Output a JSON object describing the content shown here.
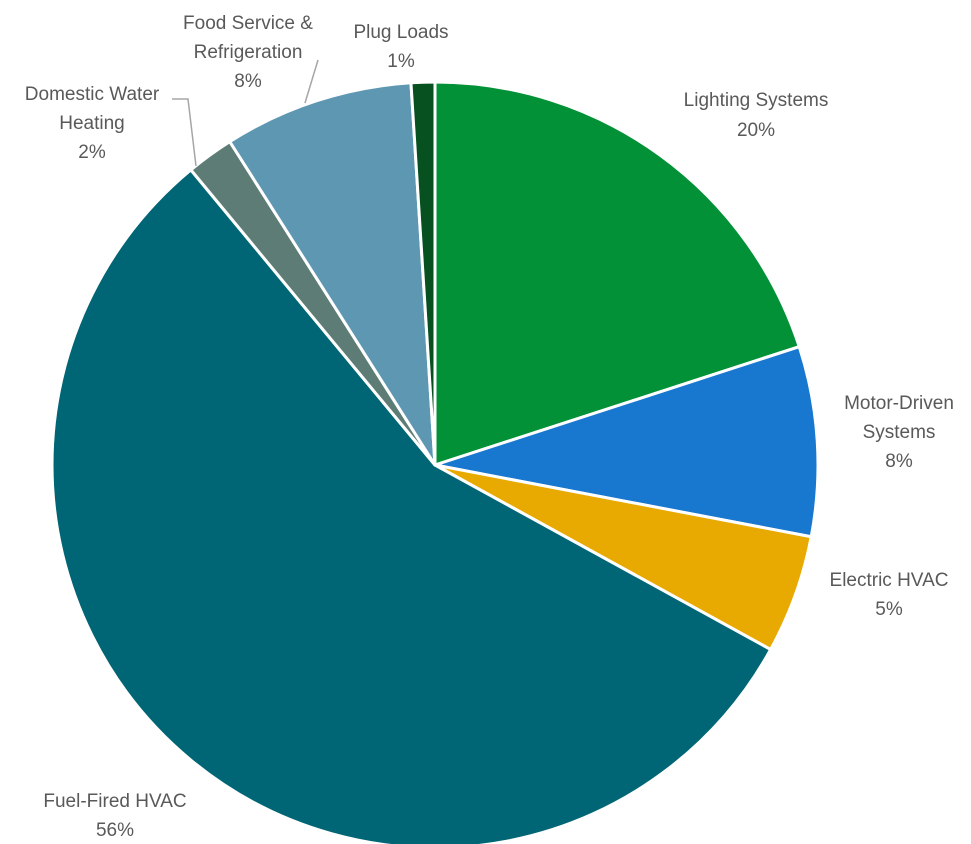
{
  "chart_data": {
    "type": "pie",
    "title": "",
    "start": "top",
    "direction": "clockwise",
    "slices": [
      {
        "name": "Lighting Systems",
        "value": 20,
        "label": "20%",
        "color": "#039137"
      },
      {
        "name": "Motor-Driven Systems",
        "value": 8,
        "label": "8%",
        "color": "#1878d0"
      },
      {
        "name": "Electric HVAC",
        "value": 5,
        "label": "5%",
        "color": "#e8a900"
      },
      {
        "name": "Fuel-Fired HVAC",
        "value": 56,
        "label": "56%",
        "color": "#006574"
      },
      {
        "name": "Domestic Water Heating",
        "value": 2,
        "label": "2%",
        "color": "#5e7c76"
      },
      {
        "name": "Food Service & Refrigeration",
        "value": 8,
        "label": "8%",
        "color": "#5e97b2"
      },
      {
        "name": "Plug Loads",
        "value": 1,
        "label": "1%",
        "color": "#075020"
      }
    ]
  },
  "labels": {
    "lighting": {
      "line1": "Lighting Systems",
      "pct": "20%"
    },
    "motor": {
      "line1": "Motor-Driven",
      "line2": "Systems",
      "pct": "8%"
    },
    "electric": {
      "line1": "Electric HVAC",
      "pct": "5%"
    },
    "fuel": {
      "line1": "Fuel-Fired HVAC",
      "pct": "56%"
    },
    "water": {
      "line1": "Domestic Water",
      "line2": "Heating",
      "pct": "2%"
    },
    "food": {
      "line1": "Food Service &",
      "line2": "Refrigeration",
      "pct": "8%"
    },
    "plug": {
      "line1": "Plug Loads",
      "pct": "1%"
    }
  }
}
